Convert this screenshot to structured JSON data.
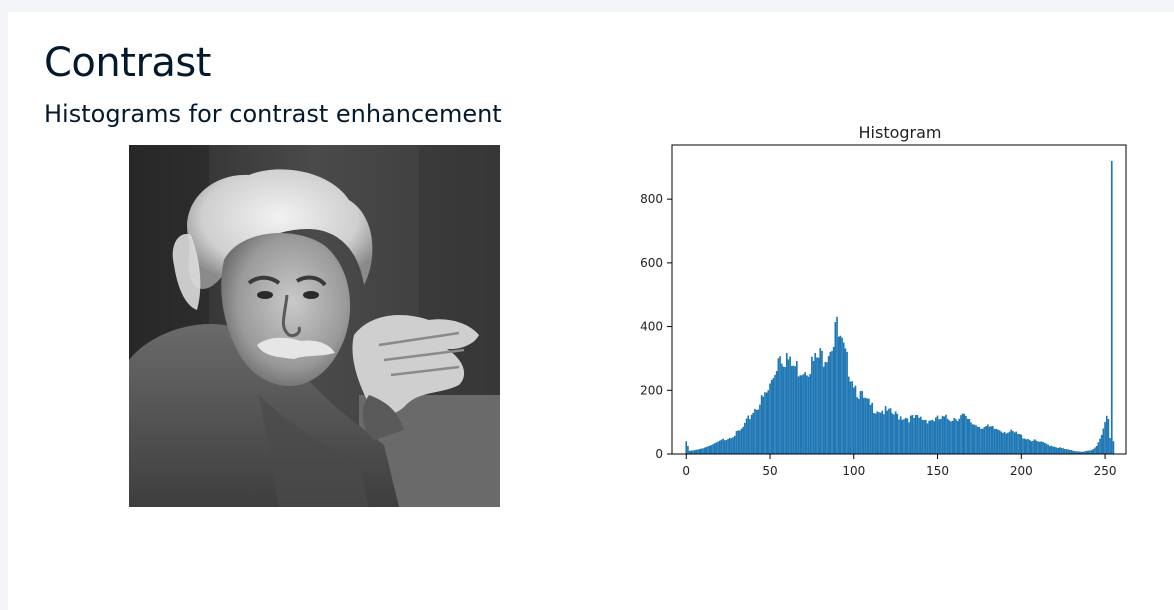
{
  "slide": {
    "title": "Contrast",
    "subtitle": "Histograms for contrast enhancement"
  },
  "photo": {
    "subject": "portrait-photo",
    "colors": {
      "background": "#3a3a3a",
      "sweater": "#555555",
      "hair": "#e8e8e8",
      "skin": "#a8a8a8"
    }
  },
  "chart_data": {
    "type": "bar",
    "title": "Histogram",
    "xlabel": "",
    "ylabel": "",
    "xlim": [
      -8,
      263
    ],
    "ylim": [
      0,
      970
    ],
    "xticks": [
      0,
      50,
      100,
      150,
      200,
      250
    ],
    "yticks": [
      0,
      200,
      400,
      600,
      800
    ],
    "bar_color": "#1f77b4",
    "grid": false,
    "bins": [
      [
        0,
        40
      ],
      [
        2,
        10
      ],
      [
        5,
        12
      ],
      [
        10,
        18
      ],
      [
        15,
        28
      ],
      [
        20,
        42
      ],
      [
        25,
        55
      ],
      [
        30,
        68
      ],
      [
        33,
        80
      ],
      [
        36,
        105
      ],
      [
        40,
        145
      ],
      [
        43,
        165
      ],
      [
        46,
        185
      ],
      [
        49,
        210
      ],
      [
        52,
        260
      ],
      [
        54,
        300
      ],
      [
        56,
        350
      ],
      [
        58,
        320
      ],
      [
        60,
        330
      ],
      [
        62,
        295
      ],
      [
        65,
        290
      ],
      [
        68,
        285
      ],
      [
        70,
        290
      ],
      [
        73,
        295
      ],
      [
        76,
        305
      ],
      [
        79,
        320
      ],
      [
        82,
        330
      ],
      [
        85,
        355
      ],
      [
        88,
        385
      ],
      [
        89,
        445
      ],
      [
        91,
        385
      ],
      [
        93,
        355
      ],
      [
        96,
        305
      ],
      [
        99,
        260
      ],
      [
        102,
        215
      ],
      [
        106,
        180
      ],
      [
        110,
        160
      ],
      [
        115,
        150
      ],
      [
        120,
        140
      ],
      [
        125,
        130
      ],
      [
        130,
        125
      ],
      [
        135,
        118
      ],
      [
        140,
        118
      ],
      [
        145,
        115
      ],
      [
        150,
        115
      ],
      [
        155,
        118
      ],
      [
        160,
        122
      ],
      [
        165,
        128
      ],
      [
        168,
        110
      ],
      [
        172,
        100
      ],
      [
        177,
        92
      ],
      [
        182,
        85
      ],
      [
        187,
        82
      ],
      [
        192,
        75
      ],
      [
        197,
        68
      ],
      [
        202,
        55
      ],
      [
        207,
        45
      ],
      [
        212,
        38
      ],
      [
        217,
        30
      ],
      [
        222,
        22
      ],
      [
        227,
        15
      ],
      [
        232,
        10
      ],
      [
        237,
        8
      ],
      [
        242,
        12
      ],
      [
        245,
        25
      ],
      [
        248,
        60
      ],
      [
        250,
        100
      ],
      [
        251,
        120
      ],
      [
        252,
        110
      ],
      [
        253,
        50
      ],
      [
        254,
        920
      ],
      [
        255,
        40
      ]
    ]
  }
}
